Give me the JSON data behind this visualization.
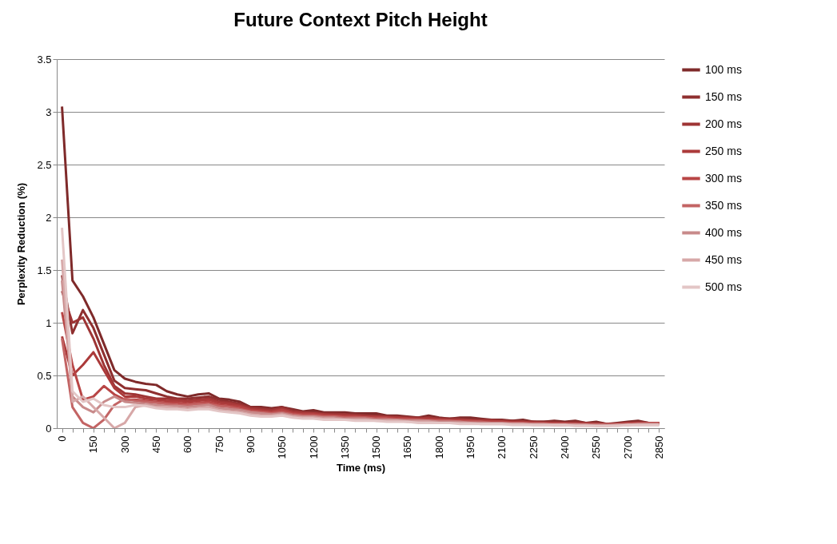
{
  "chart_data": {
    "type": "line",
    "title": "Future Context Pitch Height",
    "xlabel": "Time (ms)",
    "ylabel": "Perplexity Reduction (%)",
    "categories": [
      "0",
      null,
      null,
      "150",
      null,
      null,
      "300",
      null,
      null,
      "450",
      null,
      null,
      "600",
      null,
      null,
      "750",
      null,
      null,
      "900",
      null,
      null,
      "1050",
      null,
      null,
      "1200",
      null,
      null,
      "1350",
      null,
      null,
      "1500",
      null,
      null,
      "1650",
      null,
      null,
      "1800",
      null,
      null,
      "1950",
      null,
      null,
      "2100",
      null,
      null,
      "2250",
      null,
      null,
      "2400",
      null,
      null,
      "2550",
      null,
      null,
      "2700",
      null,
      null,
      "2850"
    ],
    "ylim": [
      0,
      3.5
    ],
    "yticks": [
      0,
      0.5,
      1,
      1.5,
      2,
      2.5,
      3,
      3.5
    ],
    "grid": "y",
    "legend": "right",
    "marker": "none",
    "line_style": "solid",
    "series": [
      {
        "name": "100 ms",
        "color": "#7f2a2a",
        "values": [
          3.05,
          1.4,
          1.25,
          1.05,
          0.8,
          0.55,
          0.47,
          0.44,
          0.42,
          0.41,
          0.35,
          0.32,
          0.3,
          0.32,
          0.33,
          0.28,
          0.27,
          0.25,
          0.2,
          0.2,
          0.19,
          0.2,
          0.18,
          0.16,
          0.17,
          0.15,
          0.15,
          0.15,
          0.14,
          0.14,
          0.14,
          0.12,
          0.12,
          0.11,
          0.1,
          0.12,
          0.1,
          0.09,
          0.1,
          0.1,
          0.09,
          0.08,
          0.08,
          0.07,
          0.08,
          0.06,
          0.06,
          0.07,
          0.06,
          0.07,
          0.05,
          0.06,
          0.04,
          0.05,
          0.06,
          0.07,
          0.05,
          0.05
        ]
      },
      {
        "name": "150 ms",
        "color": "#8f2f2f",
        "values": [
          1.45,
          0.9,
          1.12,
          0.95,
          0.7,
          0.45,
          0.38,
          0.37,
          0.36,
          0.33,
          0.3,
          0.28,
          0.28,
          0.29,
          0.3,
          0.27,
          0.25,
          0.23,
          0.2,
          0.19,
          0.18,
          0.2,
          0.17,
          0.15,
          0.15,
          0.14,
          0.14,
          0.13,
          0.13,
          0.12,
          0.12,
          0.11,
          0.11,
          0.1,
          0.1,
          0.1,
          0.09,
          0.09,
          0.09,
          0.08,
          0.08,
          0.08,
          0.07,
          0.07,
          0.06,
          0.06,
          0.06,
          0.06,
          0.05,
          0.06,
          0.05,
          0.05,
          0.04,
          0.04,
          0.05,
          0.06,
          0.05,
          0.05
        ]
      },
      {
        "name": "200 ms",
        "color": "#9e3434",
        "values": [
          1.3,
          1.0,
          1.05,
          0.85,
          0.6,
          0.4,
          0.33,
          0.32,
          0.3,
          0.28,
          0.28,
          0.27,
          0.26,
          0.27,
          0.28,
          0.25,
          0.24,
          0.22,
          0.19,
          0.18,
          0.17,
          0.19,
          0.16,
          0.15,
          0.14,
          0.13,
          0.13,
          0.13,
          0.12,
          0.12,
          0.11,
          0.11,
          0.1,
          0.1,
          0.09,
          0.1,
          0.09,
          0.08,
          0.08,
          0.08,
          0.07,
          0.07,
          0.07,
          0.06,
          0.06,
          0.06,
          0.05,
          0.05,
          0.05,
          0.05,
          0.05,
          0.04,
          0.04,
          0.04,
          0.05,
          0.05,
          0.05,
          0.05
        ]
      },
      {
        "name": "250 ms",
        "color": "#ab3a3a",
        "values": [
          0.87,
          0.5,
          0.6,
          0.72,
          0.55,
          0.38,
          0.3,
          0.3,
          0.28,
          0.27,
          0.26,
          0.26,
          0.25,
          0.26,
          0.27,
          0.24,
          0.23,
          0.21,
          0.18,
          0.17,
          0.16,
          0.18,
          0.15,
          0.14,
          0.14,
          0.13,
          0.12,
          0.12,
          0.12,
          0.11,
          0.11,
          0.1,
          0.1,
          0.09,
          0.09,
          0.09,
          0.08,
          0.08,
          0.08,
          0.07,
          0.07,
          0.07,
          0.06,
          0.06,
          0.06,
          0.05,
          0.05,
          0.05,
          0.05,
          0.04,
          0.04,
          0.04,
          0.04,
          0.04,
          0.05,
          0.05,
          0.05,
          0.05
        ]
      },
      {
        "name": "300 ms",
        "color": "#b84545",
        "values": [
          1.1,
          0.6,
          0.27,
          0.3,
          0.4,
          0.32,
          0.27,
          0.27,
          0.26,
          0.25,
          0.24,
          0.24,
          0.23,
          0.24,
          0.25,
          0.22,
          0.21,
          0.2,
          0.17,
          0.16,
          0.15,
          0.17,
          0.14,
          0.13,
          0.13,
          0.12,
          0.12,
          0.11,
          0.11,
          0.1,
          0.1,
          0.1,
          0.09,
          0.09,
          0.08,
          0.08,
          0.08,
          0.07,
          0.07,
          0.07,
          0.06,
          0.06,
          0.06,
          0.05,
          0.05,
          0.05,
          0.05,
          0.04,
          0.04,
          0.04,
          0.04,
          0.04,
          0.03,
          0.04,
          0.04,
          0.05,
          0.05,
          0.05
        ]
      },
      {
        "name": "350 ms",
        "color": "#c36464",
        "values": [
          0.85,
          0.2,
          0.05,
          0.0,
          0.08,
          0.22,
          0.28,
          0.26,
          0.25,
          0.24,
          0.23,
          0.22,
          0.22,
          0.23,
          0.23,
          0.21,
          0.2,
          0.18,
          0.16,
          0.15,
          0.14,
          0.15,
          0.13,
          0.12,
          0.12,
          0.11,
          0.11,
          0.1,
          0.1,
          0.1,
          0.09,
          0.09,
          0.08,
          0.08,
          0.08,
          0.07,
          0.07,
          0.07,
          0.06,
          0.06,
          0.06,
          0.05,
          0.05,
          0.05,
          0.05,
          0.04,
          0.04,
          0.04,
          0.04,
          0.04,
          0.03,
          0.03,
          0.03,
          0.03,
          0.04,
          0.04,
          0.04,
          0.04
        ]
      },
      {
        "name": "400 ms",
        "color": "#c88a8a",
        "values": [
          1.4,
          0.3,
          0.2,
          0.15,
          0.25,
          0.3,
          0.25,
          0.24,
          0.23,
          0.22,
          0.21,
          0.21,
          0.2,
          0.21,
          0.22,
          0.19,
          0.18,
          0.17,
          0.15,
          0.14,
          0.13,
          0.14,
          0.12,
          0.11,
          0.11,
          0.1,
          0.1,
          0.09,
          0.09,
          0.09,
          0.08,
          0.08,
          0.08,
          0.07,
          0.07,
          0.07,
          0.06,
          0.06,
          0.06,
          0.05,
          0.05,
          0.05,
          0.05,
          0.04,
          0.04,
          0.04,
          0.04,
          0.03,
          0.03,
          0.03,
          0.03,
          0.03,
          0.03,
          0.03,
          0.03,
          0.04,
          0.04,
          0.04
        ]
      },
      {
        "name": "450 ms",
        "color": "#d7a8a8",
        "values": [
          1.6,
          0.25,
          0.3,
          0.2,
          0.1,
          0.0,
          0.05,
          0.2,
          0.22,
          0.2,
          0.2,
          0.19,
          0.18,
          0.19,
          0.2,
          0.17,
          0.16,
          0.15,
          0.13,
          0.12,
          0.12,
          0.13,
          0.11,
          0.1,
          0.1,
          0.09,
          0.09,
          0.08,
          0.08,
          0.08,
          0.07,
          0.07,
          0.07,
          0.06,
          0.06,
          0.06,
          0.05,
          0.05,
          0.05,
          0.05,
          0.04,
          0.04,
          0.04,
          0.04,
          0.04,
          0.03,
          0.03,
          0.03,
          0.03,
          0.03,
          0.03,
          0.02,
          0.02,
          0.03,
          0.03,
          0.03,
          0.03,
          0.03
        ]
      },
      {
        "name": "500 ms",
        "color": "#e3c6c6",
        "values": [
          1.9,
          0.35,
          0.25,
          0.28,
          0.22,
          0.2,
          0.2,
          0.22,
          0.21,
          0.19,
          0.18,
          0.18,
          0.17,
          0.18,
          0.18,
          0.16,
          0.15,
          0.14,
          0.12,
          0.11,
          0.11,
          0.12,
          0.1,
          0.09,
          0.09,
          0.08,
          0.08,
          0.08,
          0.07,
          0.07,
          0.07,
          0.06,
          0.06,
          0.06,
          0.05,
          0.05,
          0.05,
          0.05,
          0.04,
          0.04,
          0.04,
          0.04,
          0.04,
          0.03,
          0.03,
          0.03,
          0.03,
          0.03,
          0.03,
          0.02,
          0.02,
          0.02,
          0.02,
          0.02,
          0.03,
          0.03,
          0.03,
          0.03
        ]
      }
    ]
  }
}
